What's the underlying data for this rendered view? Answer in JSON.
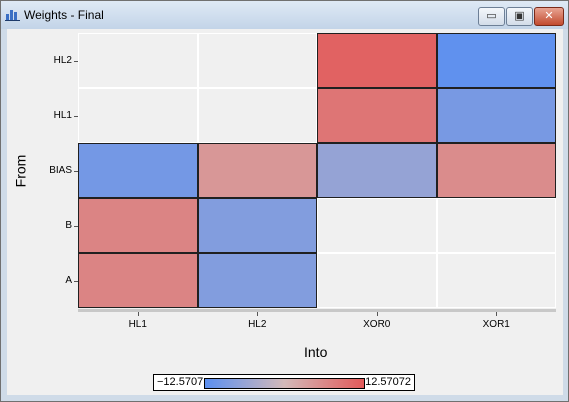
{
  "window": {
    "title": "Weights - Final",
    "minimize_glyph": "▭",
    "restore_glyph": "▣",
    "close_glyph": "✕"
  },
  "axes": {
    "x_title": "Into",
    "y_title": "From"
  },
  "chart_data": {
    "type": "heatmap",
    "title": "",
    "xlabel": "Into",
    "ylabel": "From",
    "x_categories": [
      "HL1",
      "HL2",
      "XOR0",
      "XOR1"
    ],
    "y_categories": [
      "HL2",
      "HL1",
      "BIAS",
      "B",
      "A"
    ],
    "values": [
      [
        null,
        null,
        11.5,
        -12.0
      ],
      [
        null,
        null,
        9.0,
        -9.5
      ],
      [
        -10.0,
        4.5,
        -6.5,
        6.0
      ],
      [
        7.0,
        -8.5,
        null,
        null
      ],
      [
        7.0,
        -8.5,
        null,
        null
      ]
    ],
    "color_range": {
      "min": -12.5707,
      "max": 12.57072,
      "min_label": "−12.5707",
      "max_label": "12.57072"
    },
    "colors": {
      "negative": "#5b8ff0",
      "mid": "#d3b9b9",
      "positive": "#e25a5a",
      "empty": "#f0f0f0"
    },
    "grid": true,
    "legend_placement": "bottom"
  }
}
